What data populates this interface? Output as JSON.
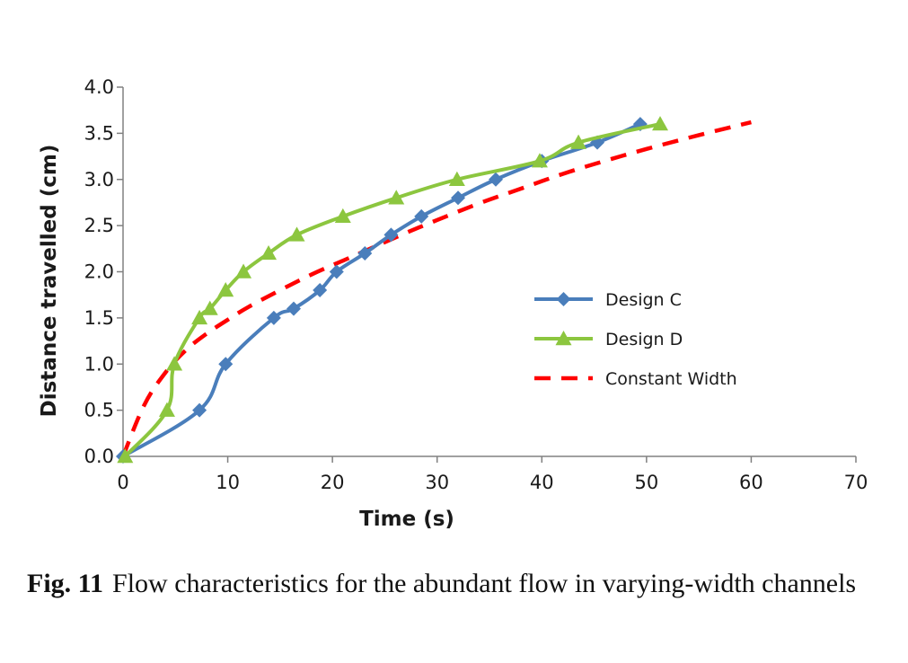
{
  "chart_data": {
    "type": "line",
    "xlabel": "Time (s)",
    "ylabel": "Distance travelled (cm)",
    "xlim": [
      0,
      70
    ],
    "ylim": [
      0,
      4.0
    ],
    "x_ticks": [
      "0",
      "10",
      "20",
      "30",
      "40",
      "50",
      "60",
      "70"
    ],
    "y_ticks": [
      "0.0",
      "0.5",
      "1.0",
      "1.5",
      "2.0",
      "2.5",
      "3.0",
      "3.5",
      "4.0"
    ],
    "grid": false,
    "legend_position": "center-right",
    "series": [
      {
        "name": "Design C",
        "color": "#4a7ebb",
        "marker": "diamond",
        "line_style": "solid",
        "points": [
          [
            0,
            0
          ],
          [
            7.3,
            0.5
          ],
          [
            9.8,
            1.0
          ],
          [
            14.4,
            1.5
          ],
          [
            16.3,
            1.6
          ],
          [
            18.8,
            1.8
          ],
          [
            20.4,
            2.0
          ],
          [
            23.1,
            2.2
          ],
          [
            25.6,
            2.4
          ],
          [
            28.5,
            2.6
          ],
          [
            32.0,
            2.8
          ],
          [
            35.6,
            3.0
          ],
          [
            40.0,
            3.2
          ],
          [
            45.3,
            3.4
          ],
          [
            49.4,
            3.6
          ]
        ]
      },
      {
        "name": "Design D",
        "color": "#8cc63f",
        "marker": "triangle",
        "line_style": "solid",
        "points": [
          [
            0.2,
            0
          ],
          [
            4.2,
            0.5
          ],
          [
            4.9,
            1.0
          ],
          [
            7.3,
            1.5
          ],
          [
            8.3,
            1.6
          ],
          [
            9.8,
            1.8
          ],
          [
            11.5,
            2.0
          ],
          [
            13.9,
            2.2
          ],
          [
            16.6,
            2.4
          ],
          [
            21.0,
            2.6
          ],
          [
            26.1,
            2.8
          ],
          [
            31.9,
            3.0
          ],
          [
            39.8,
            3.2
          ],
          [
            43.5,
            3.4
          ],
          [
            51.3,
            3.6
          ]
        ]
      },
      {
        "name": "Constant Width",
        "color": "#ff0000",
        "marker": "none",
        "line_style": "dashed",
        "points": [
          [
            0,
            0
          ],
          [
            2,
            0.55
          ],
          [
            4,
            0.9
          ],
          [
            6,
            1.15
          ],
          [
            8,
            1.33
          ],
          [
            10,
            1.48
          ],
          [
            12,
            1.62
          ],
          [
            15,
            1.8
          ],
          [
            18,
            1.97
          ],
          [
            21,
            2.12
          ],
          [
            24,
            2.27
          ],
          [
            27,
            2.42
          ],
          [
            30,
            2.56
          ],
          [
            34,
            2.74
          ],
          [
            38,
            2.9
          ],
          [
            42,
            3.06
          ],
          [
            46,
            3.2
          ],
          [
            50,
            3.33
          ],
          [
            55,
            3.48
          ],
          [
            60,
            3.62
          ]
        ]
      }
    ]
  },
  "caption": {
    "label": "Fig. 11",
    "text": "Flow characteristics for the abundant flow in varying-width channels"
  }
}
